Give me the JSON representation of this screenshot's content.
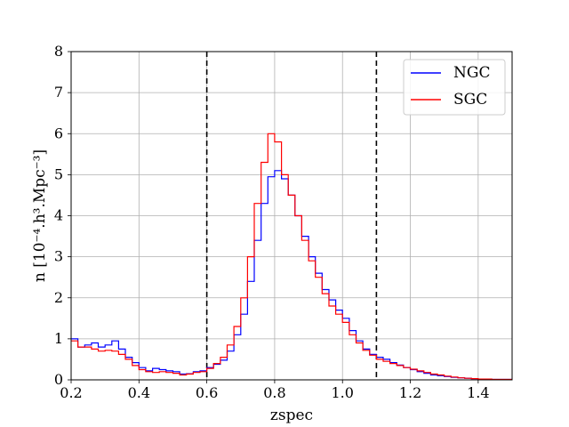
{
  "chart_data": {
    "type": "line",
    "title": "",
    "xlabel": "zspec",
    "ylabel": "n [10⁻⁴.h³.Mpc⁻³]",
    "xlim": [
      0.2,
      1.5
    ],
    "ylim": [
      0,
      8
    ],
    "xticks": [
      0.2,
      0.4,
      0.6,
      0.8,
      1.0,
      1.2,
      1.4
    ],
    "xtick_labels": [
      "0.2",
      "0.4",
      "0.6",
      "0.8",
      "1.0",
      "1.2",
      "1.4"
    ],
    "yticks": [
      0,
      1,
      2,
      3,
      4,
      5,
      6,
      7,
      8
    ],
    "ytick_labels": [
      "0",
      "1",
      "2",
      "3",
      "4",
      "5",
      "6",
      "7",
      "8"
    ],
    "grid": true,
    "legend_position": "top-right",
    "vlines": [
      0.6,
      1.1
    ],
    "series": [
      {
        "name": "NGC",
        "color": "#0000ff",
        "x": [
          0.2,
          0.22,
          0.24,
          0.26,
          0.28,
          0.3,
          0.32,
          0.34,
          0.36,
          0.38,
          0.4,
          0.42,
          0.44,
          0.46,
          0.48,
          0.5,
          0.52,
          0.54,
          0.56,
          0.58,
          0.6,
          0.62,
          0.64,
          0.66,
          0.68,
          0.7,
          0.72,
          0.74,
          0.76,
          0.78,
          0.8,
          0.82,
          0.84,
          0.86,
          0.88,
          0.9,
          0.92,
          0.94,
          0.96,
          0.98,
          1.0,
          1.02,
          1.04,
          1.06,
          1.08,
          1.1,
          1.12,
          1.14,
          1.16,
          1.18,
          1.2,
          1.22,
          1.24,
          1.26,
          1.28,
          1.3,
          1.32,
          1.34,
          1.36,
          1.38,
          1.4,
          1.42,
          1.44,
          1.46,
          1.48,
          1.5
        ],
        "y": [
          1.0,
          0.8,
          0.85,
          0.9,
          0.8,
          0.85,
          0.95,
          0.75,
          0.55,
          0.42,
          0.3,
          0.22,
          0.28,
          0.25,
          0.22,
          0.2,
          0.14,
          0.15,
          0.2,
          0.22,
          0.3,
          0.38,
          0.48,
          0.7,
          1.1,
          1.6,
          2.4,
          3.4,
          4.3,
          4.95,
          5.1,
          4.9,
          4.5,
          4.0,
          3.5,
          3.0,
          2.6,
          2.2,
          1.95,
          1.7,
          1.5,
          1.2,
          0.95,
          0.75,
          0.62,
          0.55,
          0.5,
          0.42,
          0.36,
          0.3,
          0.25,
          0.2,
          0.16,
          0.12,
          0.1,
          0.08,
          0.06,
          0.05,
          0.04,
          0.03,
          0.02,
          0.02,
          0.01,
          0.01,
          0.01,
          0.01
        ]
      },
      {
        "name": "SGC",
        "color": "#ff0000",
        "x": [
          0.2,
          0.22,
          0.24,
          0.26,
          0.28,
          0.3,
          0.32,
          0.34,
          0.36,
          0.38,
          0.4,
          0.42,
          0.44,
          0.46,
          0.48,
          0.5,
          0.52,
          0.54,
          0.56,
          0.58,
          0.6,
          0.62,
          0.64,
          0.66,
          0.68,
          0.7,
          0.72,
          0.74,
          0.76,
          0.78,
          0.8,
          0.82,
          0.84,
          0.86,
          0.88,
          0.9,
          0.92,
          0.94,
          0.96,
          0.98,
          1.0,
          1.02,
          1.04,
          1.06,
          1.08,
          1.1,
          1.12,
          1.14,
          1.16,
          1.18,
          1.2,
          1.22,
          1.24,
          1.26,
          1.28,
          1.3,
          1.32,
          1.34,
          1.36,
          1.38,
          1.4,
          1.42,
          1.44,
          1.46,
          1.48,
          1.5
        ],
        "y": [
          0.95,
          0.8,
          0.8,
          0.75,
          0.7,
          0.72,
          0.7,
          0.62,
          0.5,
          0.35,
          0.25,
          0.2,
          0.18,
          0.2,
          0.18,
          0.16,
          0.12,
          0.14,
          0.18,
          0.2,
          0.28,
          0.4,
          0.55,
          0.85,
          1.3,
          2.0,
          3.0,
          4.3,
          5.3,
          6.0,
          5.8,
          5.0,
          4.5,
          4.0,
          3.4,
          2.9,
          2.5,
          2.1,
          1.8,
          1.6,
          1.4,
          1.1,
          0.9,
          0.72,
          0.6,
          0.5,
          0.45,
          0.4,
          0.35,
          0.3,
          0.26,
          0.22,
          0.18,
          0.14,
          0.12,
          0.09,
          0.07,
          0.05,
          0.04,
          0.03,
          0.02,
          0.02,
          0.01,
          0.01,
          0.01,
          0.01
        ]
      }
    ]
  }
}
